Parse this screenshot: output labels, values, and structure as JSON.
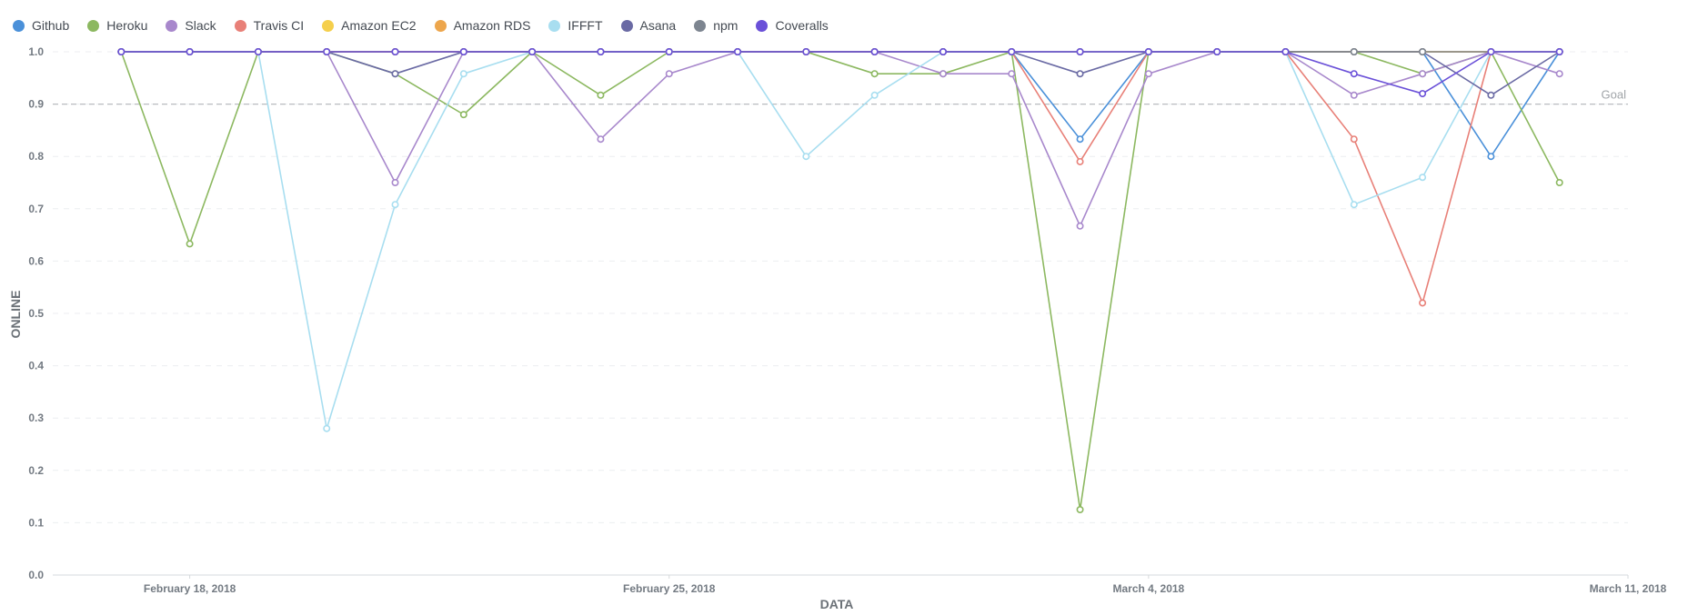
{
  "chart_data": {
    "type": "line",
    "xlabel": "DATA",
    "ylabel": "ONLINE",
    "ylim": [
      0,
      1.0
    ],
    "y_ticks": [
      "0.0",
      "0.1",
      "0.2",
      "0.3",
      "0.4",
      "0.5",
      "0.6",
      "0.7",
      "0.8",
      "0.9",
      "1.0"
    ],
    "x_ticks": [
      "February 18, 2018",
      "February 25, 2018",
      "March 4, 2018",
      "March 11, 2018"
    ],
    "x_range": [
      "2018-02-16",
      "2018-03-11"
    ],
    "x": [
      "2018-02-17",
      "2018-02-18",
      "2018-02-19",
      "2018-02-20",
      "2018-02-21",
      "2018-02-22",
      "2018-02-23",
      "2018-02-24",
      "2018-02-25",
      "2018-02-26",
      "2018-02-27",
      "2018-02-28",
      "2018-03-01",
      "2018-03-02",
      "2018-03-03",
      "2018-03-04",
      "2018-03-05",
      "2018-03-06",
      "2018-03-07",
      "2018-03-08",
      "2018-03-09",
      "2018-03-10"
    ],
    "goal": {
      "label": "Goal",
      "value": 0.9
    },
    "grid": true,
    "legend_position": "top-left",
    "series": [
      {
        "name": "Github",
        "color": "#4a90d9",
        "values": [
          1,
          1,
          1,
          1,
          1,
          1,
          1,
          1,
          1,
          1,
          1,
          1,
          1,
          1,
          0.833,
          1,
          1,
          1,
          1,
          1,
          0.8,
          1
        ]
      },
      {
        "name": "Heroku",
        "color": "#8cb860",
        "values": [
          1,
          0.633,
          1,
          1,
          0.958,
          0.88,
          1,
          0.917,
          1,
          1,
          1,
          0.958,
          0.958,
          1,
          0.125,
          1,
          1,
          1,
          1,
          0.958,
          1,
          0.75
        ]
      },
      {
        "name": "Slack",
        "color": "#a888cc",
        "values": [
          1,
          1,
          1,
          1,
          0.75,
          1,
          1,
          0.833,
          0.958,
          1,
          1,
          1,
          0.958,
          0.958,
          0.667,
          0.958,
          1,
          1,
          0.917,
          0.958,
          1,
          0.958
        ]
      },
      {
        "name": "Travis CI",
        "color": "#e88078",
        "values": [
          1,
          1,
          1,
          1,
          1,
          1,
          1,
          1,
          1,
          1,
          1,
          1,
          1,
          1,
          0.79,
          1,
          1,
          1,
          0.833,
          0.52,
          1,
          1
        ]
      },
      {
        "name": "Amazon EC2",
        "color": "#f5cf4c",
        "values": [
          1,
          1,
          1,
          1,
          1,
          1,
          1,
          1,
          1,
          1,
          1,
          1,
          1,
          1,
          1,
          1,
          1,
          1,
          1,
          1,
          1,
          1
        ]
      },
      {
        "name": "Amazon RDS",
        "color": "#eda64c",
        "values": [
          1,
          1,
          1,
          1,
          1,
          1,
          1,
          1,
          1,
          1,
          1,
          1,
          1,
          1,
          1,
          1,
          1,
          1,
          1,
          1,
          1,
          1
        ]
      },
      {
        "name": "IFFFT",
        "color": "#a8def0",
        "values": [
          1,
          1,
          1,
          0.28,
          0.708,
          0.958,
          1,
          1,
          1,
          1,
          0.8,
          0.917,
          1,
          1,
          1,
          1,
          1,
          1,
          0.708,
          0.76,
          1,
          1
        ]
      },
      {
        "name": "Asana",
        "color": "#6a6aa4",
        "values": [
          1,
          1,
          1,
          1,
          0.958,
          1,
          1,
          1,
          1,
          1,
          1,
          1,
          1,
          1,
          0.958,
          1,
          1,
          1,
          1,
          1,
          0.917,
          1
        ]
      },
      {
        "name": "npm",
        "color": "#7d8590",
        "values": [
          1,
          1,
          1,
          1,
          1,
          1,
          1,
          1,
          1,
          1,
          1,
          1,
          1,
          1,
          1,
          1,
          1,
          1,
          1,
          1,
          1,
          1
        ]
      },
      {
        "name": "Coveralls",
        "color": "#6a50d8",
        "values": [
          1,
          1,
          1,
          1,
          1,
          1,
          1,
          1,
          1,
          1,
          1,
          1,
          1,
          1,
          1,
          1,
          1,
          1,
          0.958,
          0.92,
          1,
          1
        ]
      }
    ]
  }
}
